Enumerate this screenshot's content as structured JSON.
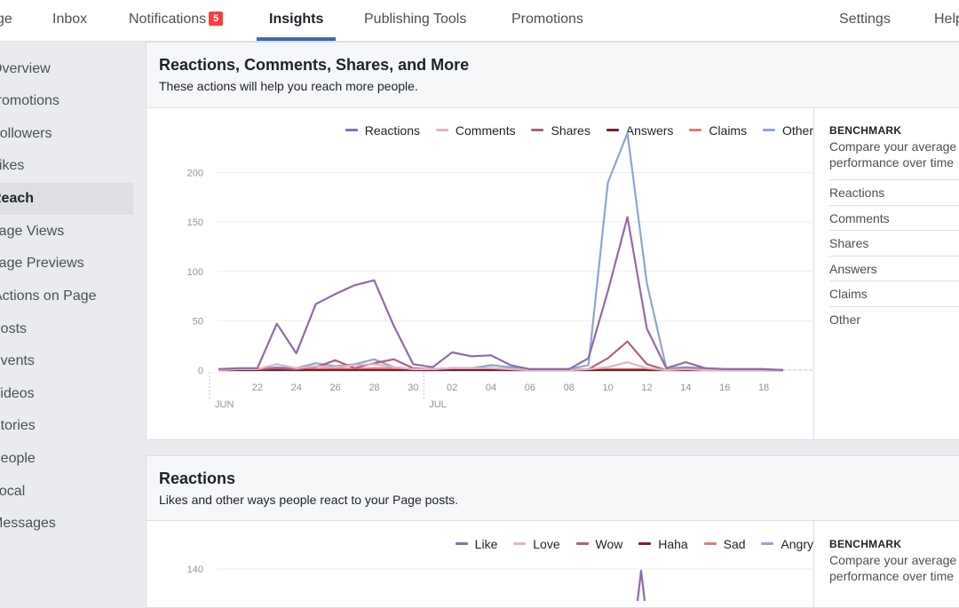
{
  "topnav": {
    "tabs": [
      {
        "label": "ge"
      },
      {
        "label": "Inbox"
      },
      {
        "label": "Notifications",
        "badge": "5"
      },
      {
        "label": "Insights",
        "active": true
      },
      {
        "label": "Publishing Tools"
      },
      {
        "label": "Promotions"
      },
      {
        "label": "Settings"
      },
      {
        "label": "Help"
      }
    ]
  },
  "sidebar": {
    "items": [
      {
        "label": "Overview"
      },
      {
        "label": "Promotions"
      },
      {
        "label": "Followers"
      },
      {
        "label": "Likes"
      },
      {
        "label": "Reach",
        "active": true
      },
      {
        "label": "Page Views"
      },
      {
        "label": "Page Previews"
      },
      {
        "label": "Actions on Page"
      },
      {
        "label": "Posts"
      },
      {
        "label": "Events"
      },
      {
        "label": "Videos"
      },
      {
        "label": "Stories"
      },
      {
        "label": "People"
      },
      {
        "label": "Local"
      },
      {
        "label": "Messages"
      }
    ]
  },
  "colors": {
    "accent": "#4267b2",
    "badge": "#fa3e3e",
    "series": [
      "#8f6ba8",
      "#e0b5c4",
      "#a8647e",
      "#7a1f2b",
      "#e07a7a",
      "#8fa6cf"
    ]
  },
  "card1": {
    "title": "Reactions, Comments, Shares, and More",
    "subtitle": "These actions will help you reach more people.",
    "benchmark": {
      "title": "BENCHMARK",
      "desc_line1": "Compare your average",
      "desc_line2": "performance over time",
      "items": [
        "Reactions",
        "Comments",
        "Shares",
        "Answers",
        "Claims",
        "Other"
      ]
    }
  },
  "card2": {
    "title": "Reactions",
    "subtitle": "Likes and other ways people react to your Page posts.",
    "benchmark": {
      "title": "BENCHMARK",
      "desc_line1": "Compare your average",
      "desc_line2": "performance over time"
    }
  },
  "chart_data": [
    {
      "type": "line",
      "x": [
        20,
        21,
        22,
        23,
        24,
        25,
        26,
        27,
        28,
        29,
        30,
        31,
        32,
        33,
        34,
        35,
        36,
        37,
        38,
        39,
        40,
        41,
        42,
        43,
        44,
        45,
        46,
        47,
        48,
        49
      ],
      "x_ticks": [
        "22",
        "24",
        "26",
        "28",
        "30",
        "02",
        "04",
        "06",
        "08",
        "10",
        "12",
        "14",
        "16",
        "18"
      ],
      "month_labels": [
        "JUN",
        "JUL"
      ],
      "ylim": [
        0,
        240
      ],
      "y_ticks": [
        0,
        50,
        100,
        150,
        200
      ],
      "series": [
        {
          "name": "Reactions",
          "values": [
            1,
            2,
            2,
            47,
            17,
            67,
            77,
            86,
            91,
            45,
            6,
            3,
            18,
            14,
            15,
            5,
            1,
            1,
            1,
            12,
            80,
            155,
            42,
            2,
            8,
            2,
            1,
            1,
            1,
            0
          ]
        },
        {
          "name": "Comments",
          "values": [
            0,
            1,
            1,
            6,
            2,
            4,
            3,
            5,
            6,
            3,
            1,
            1,
            2,
            2,
            2,
            1,
            0,
            0,
            0,
            1,
            3,
            8,
            2,
            0,
            1,
            0,
            0,
            0,
            0,
            0
          ]
        },
        {
          "name": "Shares",
          "values": [
            0,
            1,
            1,
            2,
            1,
            3,
            10,
            2,
            7,
            11,
            2,
            1,
            2,
            2,
            2,
            1,
            0,
            0,
            0,
            1,
            12,
            29,
            6,
            0,
            2,
            1,
            0,
            0,
            0,
            0
          ]
        },
        {
          "name": "Answers",
          "values": [
            0,
            0,
            0,
            0,
            0,
            0,
            0,
            0,
            0,
            0,
            0,
            0,
            0,
            0,
            0,
            0,
            0,
            0,
            0,
            0,
            0,
            0,
            0,
            0,
            0,
            0,
            0,
            0,
            0,
            0
          ]
        },
        {
          "name": "Claims",
          "values": [
            0,
            0,
            0,
            1,
            0,
            1,
            2,
            1,
            2,
            2,
            0,
            0,
            1,
            1,
            1,
            0,
            0,
            0,
            0,
            0,
            1,
            1,
            1,
            0,
            0,
            0,
            0,
            0,
            0,
            0
          ]
        },
        {
          "name": "Other",
          "values": [
            1,
            1,
            1,
            3,
            2,
            7,
            4,
            6,
            11,
            3,
            1,
            1,
            2,
            2,
            5,
            3,
            1,
            1,
            1,
            5,
            190,
            240,
            88,
            2,
            3,
            2,
            1,
            1,
            1,
            0
          ]
        }
      ]
    },
    {
      "type": "line",
      "y_ticks": [
        140
      ],
      "series": [
        {
          "name": "Like"
        },
        {
          "name": "Love"
        },
        {
          "name": "Wow"
        },
        {
          "name": "Haha"
        },
        {
          "name": "Sad"
        },
        {
          "name": "Angry"
        }
      ]
    }
  ]
}
